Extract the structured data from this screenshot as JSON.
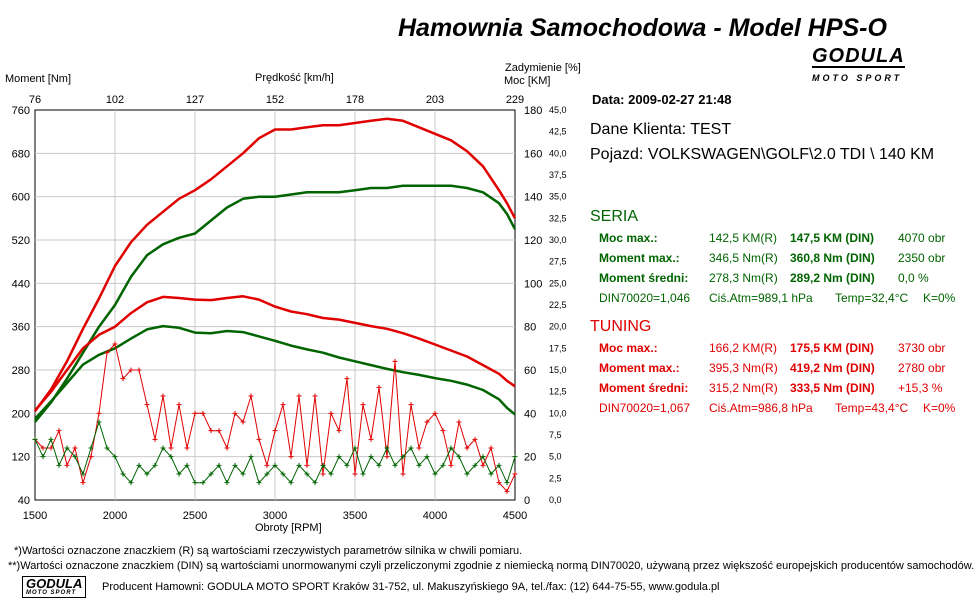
{
  "header": {
    "title": "Hamownia Samochodowa   -   Model HPS-O",
    "logo_main": "GODULA",
    "logo_sub": "MOTO SPORT"
  },
  "axes_labels": {
    "moment": "Moment [Nm]",
    "predkosc": "Prędkość [km/h]",
    "zadymienie": "Zadymienie [%]",
    "moc": "Moc [KM]",
    "obroty": "Obroty [RPM]"
  },
  "info": {
    "date": "Data: 2009-02-27  21:48",
    "client": "Dane Klienta: TEST",
    "vehicle": "Pojazd: VOLKSWAGEN\\GOLF\\2.0 TDI \\ 140 KM"
  },
  "seria": {
    "title": "SERIA",
    "rows": [
      {
        "label": "Moc max.:",
        "r": "142,5 KM(R)",
        "din": "147,5 KM (DIN)",
        "extra": "4070 obr"
      },
      {
        "label": "Moment max.:",
        "r": "346,5 Nm(R)",
        "din": "360,8 Nm (DIN)",
        "extra": "2350 obr"
      },
      {
        "label": "Moment średni:",
        "r": "278,3 Nm(R)",
        "din": "289,2 Nm (DIN)",
        "extra": "0,0 %"
      }
    ],
    "din_line": {
      "din": "DIN70020=1,046",
      "atm": "Ciś.Atm=989,1 hPa",
      "temp": "Temp=32,4°C",
      "k": "K=0%"
    }
  },
  "tuning": {
    "title": "TUNING",
    "rows": [
      {
        "label": "Moc max.:",
        "r": "166,2 KM(R)",
        "din": "175,5 KM (DIN)",
        "extra": "3730 obr"
      },
      {
        "label": "Moment max.:",
        "r": "395,3 Nm(R)",
        "din": "419,2 Nm (DIN)",
        "extra": "2780 obr"
      },
      {
        "label": "Moment średni:",
        "r": "315,2 Nm(R)",
        "din": "333,5 Nm (DIN)",
        "extra": "+15,3 %"
      }
    ],
    "din_line": {
      "din": "DIN70020=1,067",
      "atm": "Ciś.Atm=986,8 hPa",
      "temp": "Temp=43,4°C",
      "k": "K=0%"
    }
  },
  "footnotes": {
    "note1": "*)Wartości oznaczone znaczkiem (R) są wartościami rzeczywistych parametrów silnika w chwili pomiaru.",
    "note2": "**)Wartości oznaczone znaczkiem (DIN) są wartościami unormowanymi czyli przeliczonymi zgodnie z niemiecką normą DIN70020, używaną przez większość europejskich producentów samochodów.",
    "producer": "Producent Hamowni: GODULA MOTO SPORT Kraków 31-752, ul. Makuszyńskiego 9A, tel./fax: (12) 644-75-55, www.godula.pl"
  },
  "colors": {
    "seria": "#006400",
    "tuning": "#e00000",
    "grid": "#c8c8c8"
  },
  "chart_data": {
    "type": "line",
    "xlabel": "Obroty [RPM]",
    "ylabel": "Moment [Nm]",
    "y2label": "Moc [KM]",
    "y3label": "Zadymienie [%]",
    "x2label": "Prędkość [km/h]",
    "xlim": [
      1500,
      4500
    ],
    "ylim": [
      40,
      760
    ],
    "y2lim": [
      0,
      180
    ],
    "y3lim": [
      0,
      45
    ],
    "x_ticks": [
      1500,
      2000,
      2500,
      3000,
      3500,
      4000,
      4500
    ],
    "y_ticks": [
      40,
      120,
      200,
      280,
      360,
      440,
      520,
      600,
      680,
      760
    ],
    "y2_ticks": [
      0,
      20,
      40,
      60,
      80,
      100,
      120,
      140,
      160,
      180
    ],
    "y3_ticks": [
      "0,0",
      "2,5",
      "5,0",
      "7,5",
      "10,0",
      "12,5",
      "15,0",
      "17,5",
      "20,0",
      "22,5",
      "25,0",
      "27,5",
      "30,0",
      "32,5",
      "35,0",
      "37,5",
      "40,0",
      "42,5",
      "45,0"
    ],
    "x2_ticks": [
      "76",
      "102",
      "127",
      "152",
      "178",
      "203",
      "229"
    ],
    "grid": true,
    "series": [
      {
        "name": "TUNING",
        "quantity": "power",
        "axis": "y2",
        "color": "#e00000",
        "x": [
          1500,
          1600,
          1700,
          1800,
          1900,
          2000,
          2100,
          2200,
          2300,
          2400,
          2500,
          2600,
          2700,
          2800,
          2900,
          3000,
          3100,
          3200,
          3300,
          3400,
          3500,
          3600,
          3700,
          3800,
          3900,
          4000,
          4100,
          4200,
          4300,
          4400,
          4450,
          4500
        ],
        "values": [
          41,
          51,
          64,
          79,
          93,
          108,
          119,
          127,
          133,
          139,
          143,
          148,
          154,
          160,
          167,
          171,
          171,
          172,
          173,
          173,
          174,
          175,
          176,
          175,
          172,
          169,
          166,
          161,
          154,
          143,
          137,
          130
        ]
      },
      {
        "name": "SERIA",
        "quantity": "power",
        "axis": "y2",
        "color": "#006400",
        "x": [
          1500,
          1600,
          1700,
          1800,
          1900,
          2000,
          2100,
          2200,
          2300,
          2400,
          2500,
          2600,
          2700,
          2800,
          2900,
          3000,
          3100,
          3200,
          3300,
          3400,
          3500,
          3600,
          3700,
          3800,
          3900,
          4000,
          4100,
          4200,
          4300,
          4400,
          4450,
          4500
        ],
        "values": [
          36,
          45,
          56,
          68,
          80,
          90,
          103,
          113,
          118,
          121,
          123,
          129,
          135,
          139,
          140,
          140,
          141,
          142,
          142,
          142,
          143,
          144,
          144,
          145,
          145,
          145,
          145,
          144,
          142,
          137,
          132,
          125
        ]
      },
      {
        "name": "TUNING",
        "quantity": "torque",
        "axis": "y",
        "color": "#e00000",
        "x": [
          1500,
          1600,
          1700,
          1800,
          1900,
          2000,
          2100,
          2200,
          2300,
          2400,
          2500,
          2600,
          2700,
          2800,
          2900,
          3000,
          3100,
          3200,
          3300,
          3400,
          3500,
          3600,
          3700,
          3800,
          3900,
          4000,
          4100,
          4200,
          4300,
          4400,
          4450,
          4500
        ],
        "values": [
          205,
          240,
          280,
          320,
          345,
          360,
          385,
          405,
          415,
          413,
          410,
          409,
          413,
          416,
          410,
          397,
          388,
          383,
          376,
          373,
          367,
          361,
          356,
          348,
          338,
          327,
          316,
          305,
          289,
          273,
          260,
          250
        ]
      },
      {
        "name": "SERIA",
        "quantity": "torque",
        "axis": "y",
        "color": "#006400",
        "x": [
          1500,
          1600,
          1700,
          1800,
          1900,
          2000,
          2100,
          2200,
          2300,
          2400,
          2500,
          2600,
          2700,
          2800,
          2900,
          3000,
          3100,
          3200,
          3300,
          3400,
          3500,
          3600,
          3700,
          3800,
          3900,
          4000,
          4100,
          4200,
          4300,
          4400,
          4450,
          4500
        ],
        "values": [
          190,
          222,
          256,
          290,
          308,
          320,
          338,
          355,
          361,
          358,
          349,
          348,
          352,
          350,
          342,
          334,
          325,
          318,
          312,
          303,
          296,
          289,
          282,
          276,
          271,
          265,
          260,
          253,
          243,
          226,
          210,
          198
        ]
      },
      {
        "name": "TUNING",
        "quantity": "smoke",
        "axis": "y3",
        "color": "#e00000",
        "x": [
          1500,
          1550,
          1600,
          1650,
          1700,
          1750,
          1800,
          1850,
          1900,
          1950,
          2000,
          2050,
          2100,
          2150,
          2200,
          2250,
          2300,
          2350,
          2400,
          2450,
          2500,
          2550,
          2600,
          2650,
          2700,
          2750,
          2800,
          2850,
          2900,
          2950,
          3000,
          3050,
          3100,
          3150,
          3200,
          3250,
          3300,
          3350,
          3400,
          3450,
          3500,
          3550,
          3600,
          3650,
          3700,
          3750,
          3800,
          3850,
          3900,
          3950,
          4000,
          4050,
          4100,
          4150,
          4200,
          4250,
          4300,
          4350,
          4400,
          4450,
          4500
        ],
        "values": [
          7,
          6,
          6,
          8,
          4,
          6,
          2,
          5,
          10,
          17,
          18,
          14,
          15,
          15,
          11,
          7,
          12,
          6,
          11,
          6,
          10,
          10,
          8,
          8,
          6,
          10,
          9,
          12,
          7,
          4,
          8,
          11,
          5,
          12,
          4,
          12,
          3,
          10,
          8,
          14,
          3,
          11,
          7,
          13,
          5,
          16,
          3,
          11,
          6,
          9,
          10,
          8,
          4,
          9,
          6,
          7,
          4,
          6,
          2,
          1,
          3
        ]
      },
      {
        "name": "SERIA",
        "quantity": "smoke",
        "axis": "y3",
        "color": "#006400",
        "x": [
          1500,
          1550,
          1600,
          1650,
          1700,
          1750,
          1800,
          1850,
          1900,
          1950,
          2000,
          2050,
          2100,
          2150,
          2200,
          2250,
          2300,
          2350,
          2400,
          2450,
          2500,
          2550,
          2600,
          2650,
          2700,
          2750,
          2800,
          2850,
          2900,
          2950,
          3000,
          3050,
          3100,
          3150,
          3200,
          3250,
          3300,
          3350,
          3400,
          3450,
          3500,
          3550,
          3600,
          3650,
          3700,
          3750,
          3800,
          3850,
          3900,
          3950,
          4000,
          4050,
          4100,
          4150,
          4200,
          4250,
          4300,
          4350,
          4400,
          4450,
          4500
        ],
        "values": [
          7,
          5,
          7,
          4,
          6,
          5,
          3,
          6,
          9,
          6,
          5,
          3,
          2,
          4,
          3,
          4,
          6,
          5,
          3,
          4,
          2,
          2,
          3,
          4,
          2,
          4,
          3,
          5,
          2,
          3,
          4,
          3,
          2,
          4,
          3,
          2,
          4,
          3,
          5,
          4,
          6,
          3,
          5,
          4,
          6,
          4,
          5,
          6,
          4,
          5,
          3,
          4,
          6,
          5,
          3,
          4,
          5,
          3,
          4,
          2,
          5
        ]
      }
    ]
  }
}
